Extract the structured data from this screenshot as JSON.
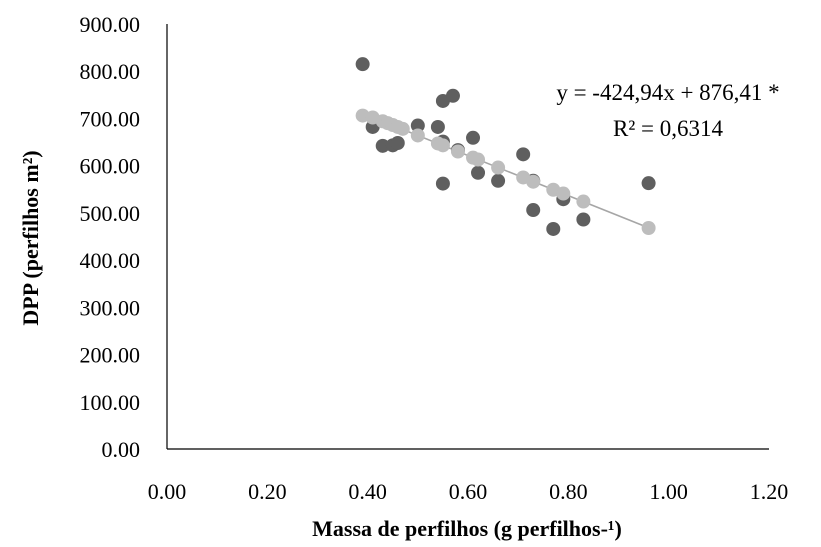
{
  "chart_data": {
    "type": "scatter",
    "xlabel": "Massa de perfilhos (g perfilhos-¹)",
    "ylabel": "DPP (perfilhos m²)",
    "xlim": [
      0,
      1.2
    ],
    "ylim": [
      0,
      900
    ],
    "x_ticks": [
      "0.00",
      "0.20",
      "0.40",
      "0.60",
      "0.80",
      "1.00",
      "1.20"
    ],
    "y_ticks": [
      "0.00",
      "100.00",
      "200.00",
      "300.00",
      "400.00",
      "500.00",
      "600.00",
      "700.00",
      "800.00",
      "900.00"
    ],
    "grid": false,
    "annotations": [
      "y = -424,94x + 876,41 *",
      "R² = 0,6314"
    ],
    "series": [
      {
        "color": "#5f5f5f",
        "points": [
          [
            0.39,
            815
          ],
          [
            0.41,
            682
          ],
          [
            0.43,
            642
          ],
          [
            0.45,
            643
          ],
          [
            0.46,
            648
          ],
          [
            0.5,
            685
          ],
          [
            0.54,
            682
          ],
          [
            0.55,
            737
          ],
          [
            0.55,
            651
          ],
          [
            0.55,
            562
          ],
          [
            0.57,
            748
          ],
          [
            0.58,
            633
          ],
          [
            0.61,
            659
          ],
          [
            0.62,
            585
          ],
          [
            0.66,
            568
          ],
          [
            0.71,
            624
          ],
          [
            0.73,
            568
          ],
          [
            0.73,
            506
          ],
          [
            0.77,
            466
          ],
          [
            0.79,
            529
          ],
          [
            0.83,
            486
          ],
          [
            0.96,
            563
          ]
        ]
      },
      {
        "color": "#bdbdbd",
        "points": [
          [
            0.39,
            706
          ],
          [
            0.41,
            702
          ],
          [
            0.43,
            694
          ],
          [
            0.44,
            690
          ],
          [
            0.45,
            686
          ],
          [
            0.46,
            682
          ],
          [
            0.47,
            678
          ],
          [
            0.5,
            664
          ],
          [
            0.54,
            647
          ],
          [
            0.55,
            643
          ],
          [
            0.58,
            630
          ],
          [
            0.61,
            617
          ],
          [
            0.62,
            613
          ],
          [
            0.66,
            596
          ],
          [
            0.71,
            575
          ],
          [
            0.73,
            566
          ],
          [
            0.77,
            549
          ],
          [
            0.79,
            541
          ],
          [
            0.83,
            524
          ],
          [
            0.96,
            468
          ]
        ]
      }
    ],
    "trendline": {
      "color": "#a6a6a6",
      "x": [
        0.39,
        0.96
      ],
      "slope": -424.94,
      "intercept": 876.41
    }
  }
}
